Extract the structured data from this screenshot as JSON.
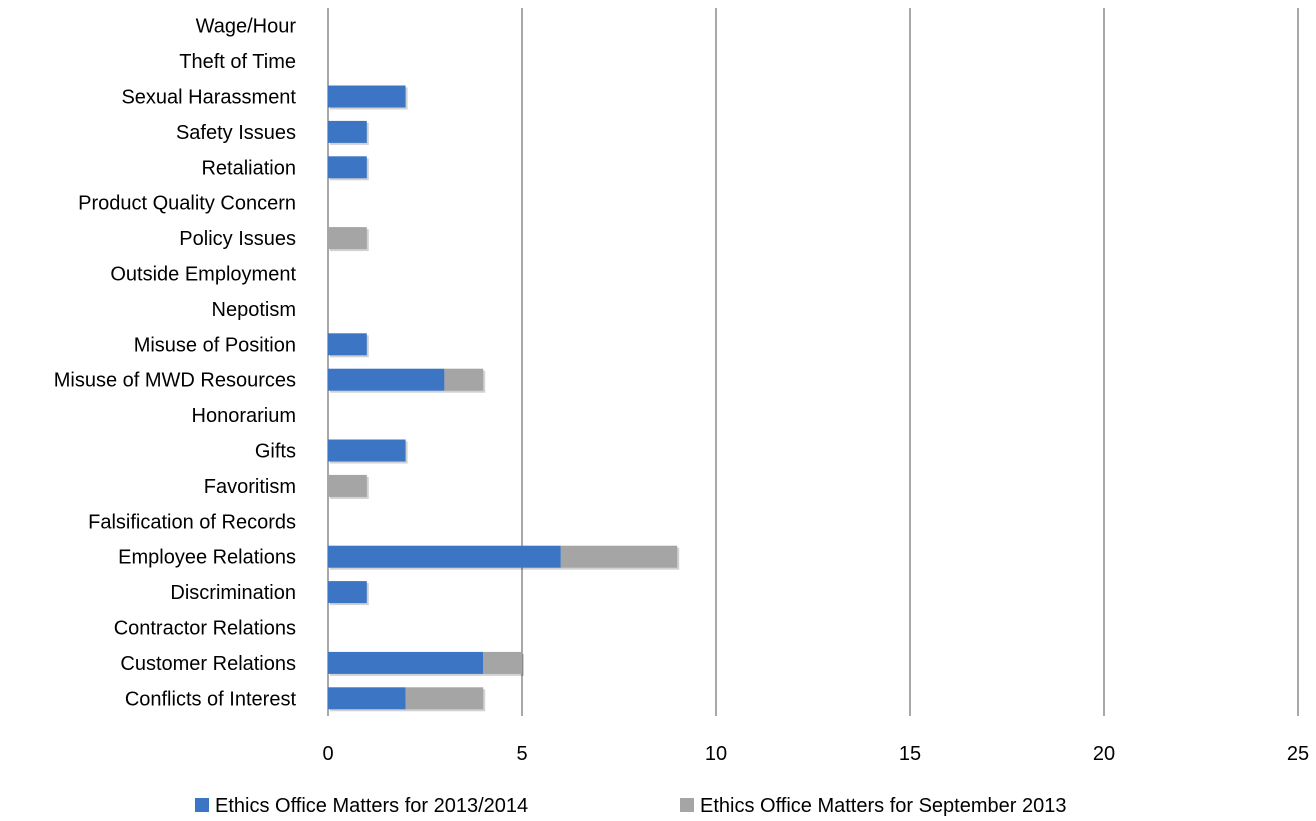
{
  "chart_data": {
    "type": "bar",
    "orientation": "horizontal",
    "stacked": true,
    "categories": [
      "Conflicts of Interest",
      "Customer Relations",
      "Contractor Relations",
      "Discrimination",
      "Employee Relations",
      "Falsification of Records",
      "Favoritism",
      "Gifts",
      "Honorarium",
      "Misuse of MWD Resources",
      "Misuse of Position",
      "Nepotism",
      "Outside Employment",
      "Policy Issues",
      "Product Quality Concern",
      "Retaliation",
      "Safety Issues",
      "Sexual Harassment",
      "Theft of Time",
      "Wage/Hour"
    ],
    "series": [
      {
        "name": "Ethics Office Matters for 2013/2014",
        "color": "#3C75C4",
        "values": [
          2,
          4,
          0,
          1,
          6,
          0,
          0,
          2,
          0,
          3,
          1,
          0,
          0,
          0,
          0,
          1,
          1,
          2,
          0,
          0
        ]
      },
      {
        "name": "Ethics Office Matters for September 2013",
        "color": "#A5A5A5",
        "values": [
          2,
          1,
          0,
          0,
          3,
          0,
          1,
          0,
          0,
          1,
          0,
          0,
          0,
          1,
          0,
          0,
          0,
          0,
          0,
          0
        ]
      }
    ],
    "xlim": [
      0,
      25
    ],
    "xticks": [
      0,
      5,
      10,
      15,
      20,
      25
    ],
    "grid": "vertical",
    "legend": "bottom",
    "title": "",
    "xlabel": "",
    "ylabel": ""
  }
}
